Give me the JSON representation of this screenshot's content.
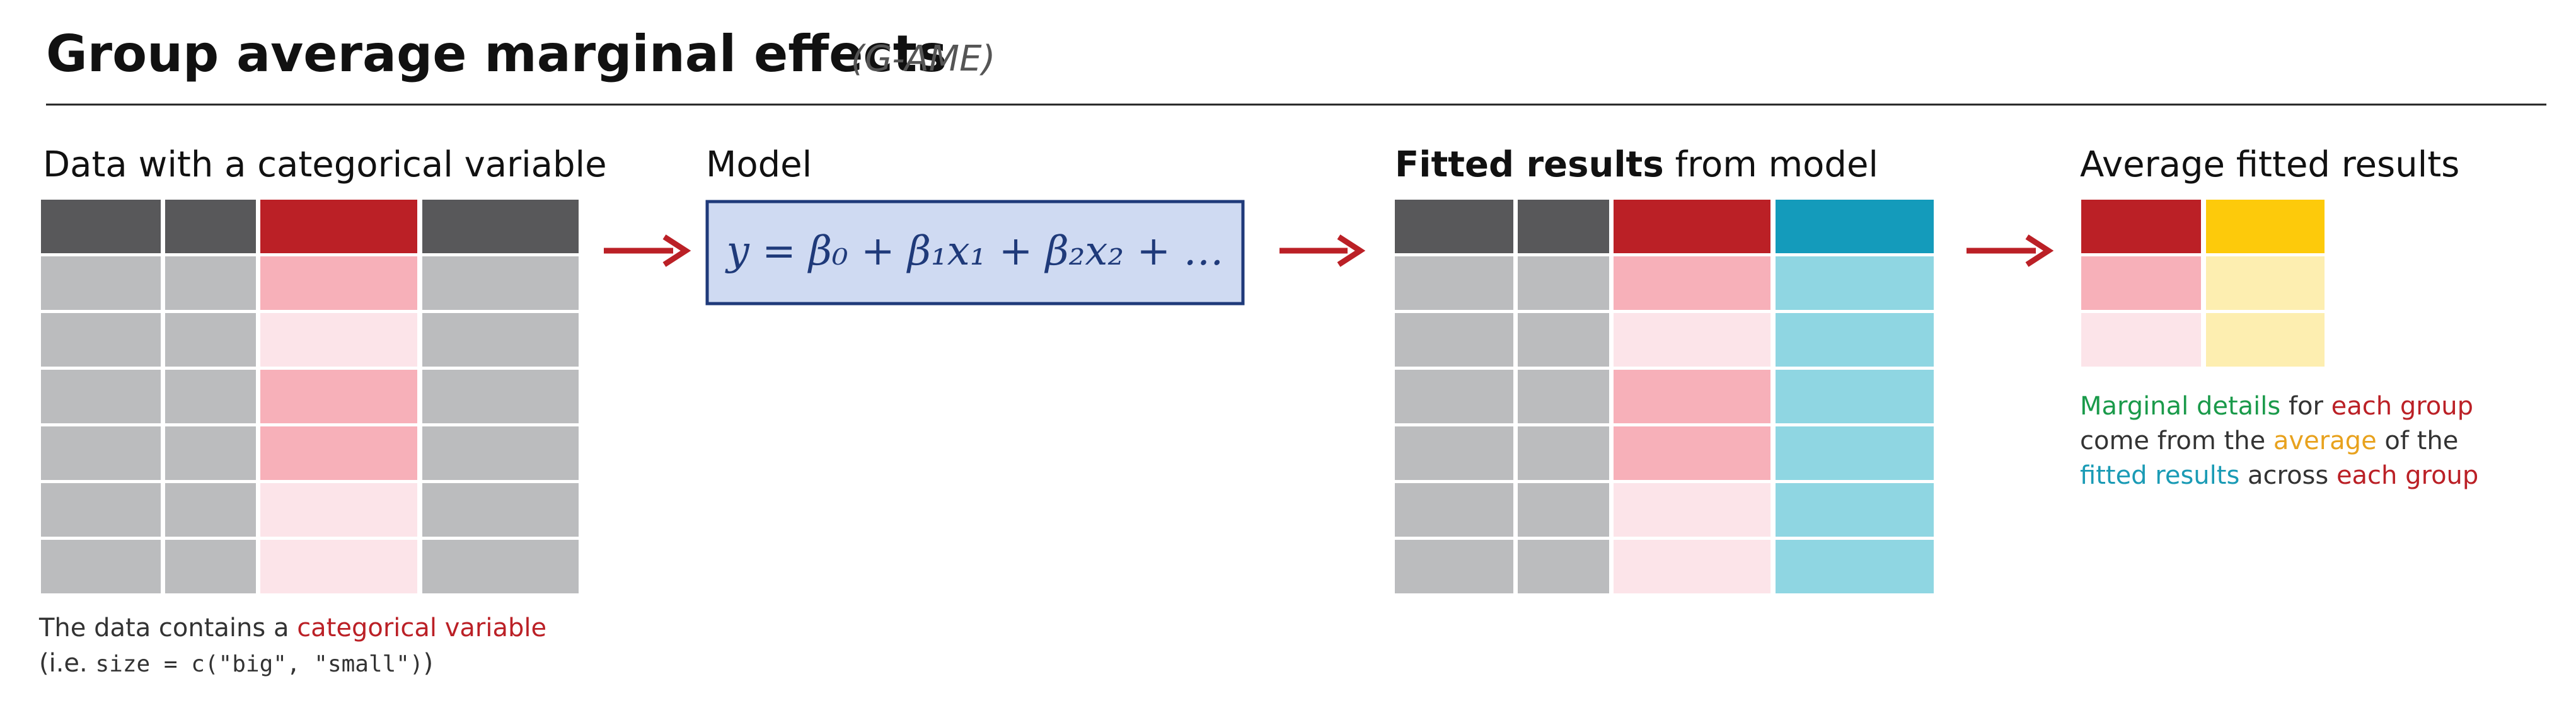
{
  "header": {
    "title": "Group average marginal effects",
    "subtitle": "(G-AME)"
  },
  "panels": [
    {
      "heading": "Data with a categorical variable",
      "caption": [
        [
          "The data contains a ",
          "categorical variable"
        ],
        [
          "(i.e. ",
          "size = c(\"big\", \"small\")",
          ")"
        ]
      ]
    },
    {
      "heading": "Model",
      "formula": "y = β₀ + β₁x₁ + β₂x₂ + …"
    },
    {
      "heading": [
        "Fitted results",
        " from model"
      ]
    },
    {
      "heading": "Average fitted results",
      "caption": [
        [
          "Marginal details",
          " for ",
          "each group"
        ],
        [
          "come from the ",
          "average",
          " of the"
        ],
        [
          "fitted results",
          " across ",
          "each group"
        ]
      ]
    }
  ]
}
